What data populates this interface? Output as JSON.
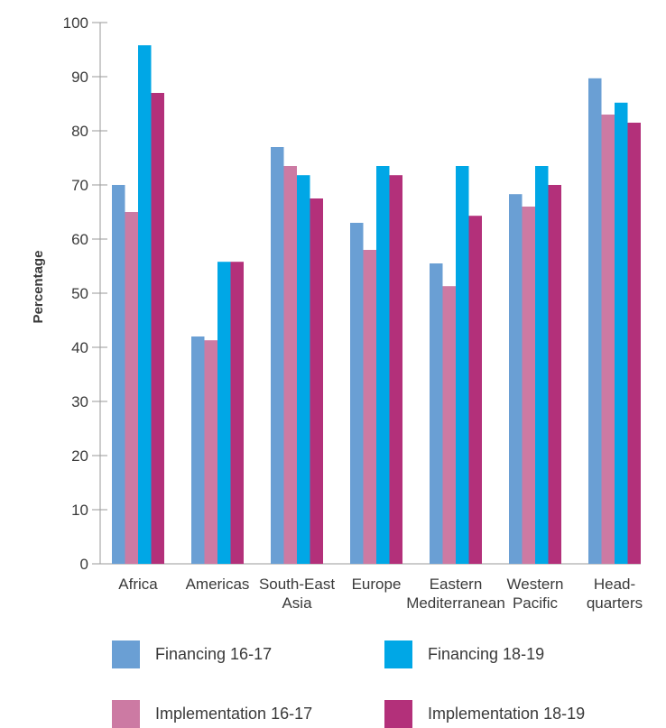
{
  "chart_data": {
    "type": "bar",
    "title": "",
    "xlabel": "",
    "ylabel": "Percentage",
    "ylim": [
      0,
      100
    ],
    "yticks": [
      0,
      10,
      20,
      30,
      40,
      50,
      60,
      70,
      80,
      90,
      100
    ],
    "grid": false,
    "legend_position": "bottom",
    "categories": [
      [
        "Africa"
      ],
      [
        "Americas"
      ],
      [
        "South-East",
        "Asia"
      ],
      [
        "Europe"
      ],
      [
        "Eastern",
        "Mediterranean"
      ],
      [
        "Western",
        "Pacific"
      ],
      [
        "Head-",
        "quarters"
      ]
    ],
    "series": [
      {
        "name": "Financing 16-17",
        "color": "#6a9fd4",
        "values": [
          70,
          42,
          77,
          63,
          55.5,
          68.3,
          89.7
        ]
      },
      {
        "name": "Implementation 16-17",
        "color": "#cc7aa3",
        "values": [
          65,
          41.3,
          73.5,
          58,
          51.3,
          66,
          83
        ]
      },
      {
        "name": "Financing 18-19",
        "color": "#00a7e6",
        "values": [
          95.8,
          55.8,
          71.8,
          73.5,
          73.5,
          73.5,
          85.2
        ]
      },
      {
        "name": "Implementation 18-19",
        "color": "#b3307a",
        "values": [
          87,
          55.8,
          67.5,
          71.8,
          64.3,
          70,
          81.5
        ]
      }
    ]
  }
}
